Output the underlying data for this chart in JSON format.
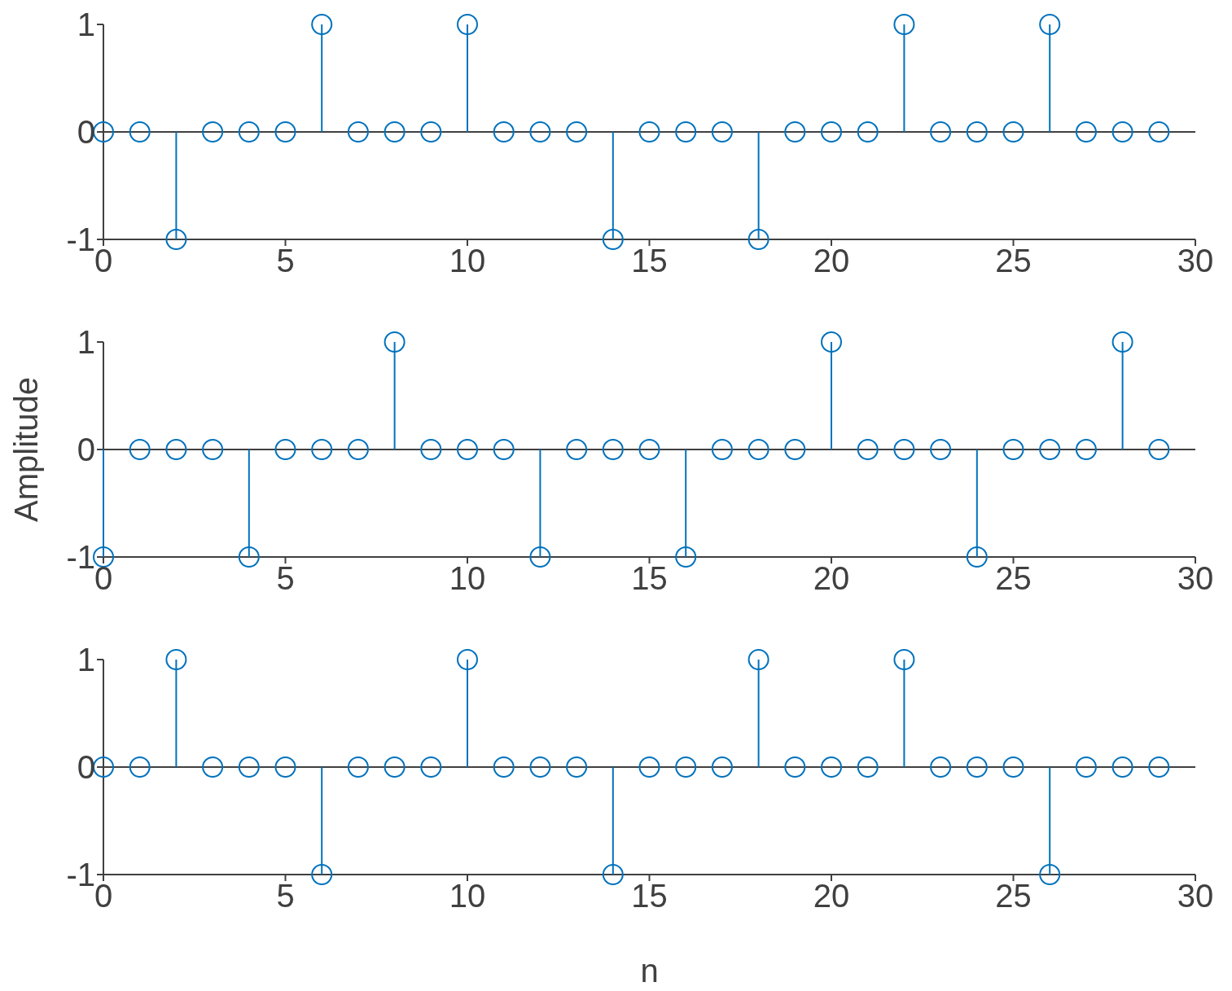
{
  "chart_data": [
    {
      "type": "lollipop",
      "marker": "circle",
      "x": [
        0,
        1,
        2,
        3,
        4,
        5,
        6,
        7,
        8,
        9,
        10,
        11,
        12,
        13,
        14,
        15,
        16,
        17,
        18,
        19,
        20,
        21,
        22,
        23,
        24,
        25,
        26,
        27,
        28,
        29
      ],
      "series": [
        {
          "color": "#0072bd",
          "values": [
            0,
            0,
            -1,
            0,
            0,
            0,
            1,
            0,
            0,
            0,
            1,
            0,
            0,
            0,
            -1,
            0,
            0,
            0,
            -1,
            0,
            0,
            0,
            1,
            0,
            0,
            0,
            1,
            0,
            0,
            0
          ]
        }
      ],
      "xlim": [
        0,
        30
      ],
      "xticks": [
        0,
        5,
        10,
        15,
        20,
        25,
        30
      ],
      "ylim": [
        -1,
        1
      ],
      "yticks": [
        -1,
        0,
        1
      ],
      "ref_lines": [
        {
          "axis": "y",
          "value": 0
        }
      ]
    },
    {
      "type": "lollipop",
      "marker": "circle",
      "ylabel": "Amplitude",
      "x": [
        0,
        1,
        2,
        3,
        4,
        5,
        6,
        7,
        8,
        9,
        10,
        11,
        12,
        13,
        14,
        15,
        16,
        17,
        18,
        19,
        20,
        21,
        22,
        23,
        24,
        25,
        26,
        27,
        28,
        29
      ],
      "series": [
        {
          "color": "#0072bd",
          "values": [
            -1,
            0,
            0,
            0,
            -1,
            0,
            0,
            0,
            1,
            0,
            0,
            0,
            -1,
            0,
            0,
            0,
            -1,
            0,
            0,
            0,
            1,
            0,
            0,
            0,
            -1,
            0,
            0,
            0,
            1,
            0
          ]
        }
      ],
      "xlim": [
        0,
        30
      ],
      "xticks": [
        0,
        5,
        10,
        15,
        20,
        25,
        30
      ],
      "ylim": [
        -1,
        1
      ],
      "yticks": [
        -1,
        0,
        1
      ],
      "ref_lines": [
        {
          "axis": "y",
          "value": 0
        }
      ]
    },
    {
      "type": "lollipop",
      "marker": "circle",
      "xlabel": "n",
      "x": [
        0,
        1,
        2,
        3,
        4,
        5,
        6,
        7,
        8,
        9,
        10,
        11,
        12,
        13,
        14,
        15,
        16,
        17,
        18,
        19,
        20,
        21,
        22,
        23,
        24,
        25,
        26,
        27,
        28,
        29
      ],
      "series": [
        {
          "color": "#0072bd",
          "values": [
            0,
            0,
            1,
            0,
            0,
            0,
            -1,
            0,
            0,
            0,
            1,
            0,
            0,
            0,
            -1,
            0,
            0,
            0,
            1,
            0,
            0,
            0,
            1,
            0,
            0,
            0,
            -1,
            0,
            0,
            0
          ]
        }
      ],
      "xlim": [
        0,
        30
      ],
      "xticks": [
        0,
        5,
        10,
        15,
        20,
        25,
        30
      ],
      "ylim": [
        -1,
        1
      ],
      "yticks": [
        -1,
        0,
        1
      ],
      "ref_lines": [
        {
          "axis": "y",
          "value": 0
        }
      ]
    }
  ]
}
